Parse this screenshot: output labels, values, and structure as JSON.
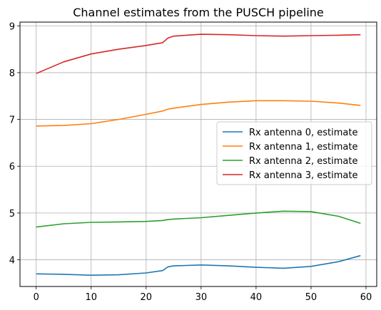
{
  "chart_data": {
    "type": "line",
    "title": "Channel estimates from the PUSCH pipeline",
    "xlabel": "",
    "ylabel": "",
    "xlim": [
      -2.95,
      61.95
    ],
    "ylim": [
      3.43,
      9.08
    ],
    "xticks": [
      0,
      10,
      20,
      30,
      40,
      50,
      60
    ],
    "yticks": [
      4,
      5,
      6,
      7,
      8,
      9
    ],
    "grid": true,
    "legend_position": "center-right",
    "x": [
      0,
      5,
      10,
      15,
      20,
      23,
      24,
      25,
      30,
      35,
      40,
      45,
      50,
      55,
      59
    ],
    "series": [
      {
        "name": "Rx antenna 0, estimate",
        "color": "#1f77b4",
        "values": [
          3.7,
          3.69,
          3.67,
          3.68,
          3.72,
          3.77,
          3.85,
          3.87,
          3.89,
          3.87,
          3.84,
          3.82,
          3.86,
          3.96,
          4.09
        ]
      },
      {
        "name": "Rx antenna 1, estimate",
        "color": "#ff7f0e",
        "values": [
          6.86,
          6.87,
          6.91,
          7.0,
          7.11,
          7.18,
          7.22,
          7.24,
          7.32,
          7.37,
          7.4,
          7.4,
          7.39,
          7.35,
          7.3
        ]
      },
      {
        "name": "Rx antenna 2, estimate",
        "color": "#2ca02c",
        "values": [
          4.7,
          4.77,
          4.8,
          4.81,
          4.82,
          4.84,
          4.86,
          4.87,
          4.9,
          4.95,
          5.0,
          5.04,
          5.03,
          4.93,
          4.78
        ]
      },
      {
        "name": "Rx antenna 3, estimate",
        "color": "#d62728",
        "values": [
          7.98,
          8.23,
          8.4,
          8.5,
          8.58,
          8.64,
          8.74,
          8.78,
          8.82,
          8.81,
          8.79,
          8.78,
          8.79,
          8.8,
          8.81
        ]
      }
    ]
  }
}
